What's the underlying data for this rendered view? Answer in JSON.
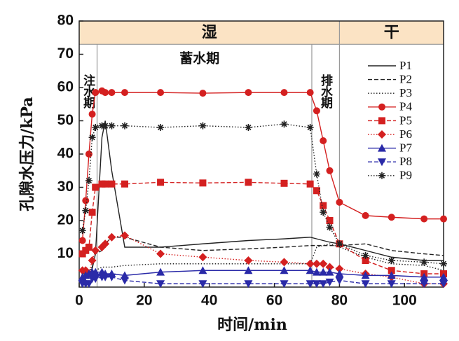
{
  "chart_data": {
    "type": "line",
    "x_label": "时间/min",
    "y_label": "孔隙水压力/kPa",
    "xlim": [
      0,
      112
    ],
    "ylim": [
      0,
      80
    ],
    "xticks": [
      0,
      20,
      40,
      60,
      80,
      100
    ],
    "yticks": [
      10,
      20,
      30,
      40,
      50,
      60,
      70,
      80
    ],
    "band_bottom": 73,
    "band_labels": [
      "湿",
      "干"
    ],
    "phase_lines": [
      5.5,
      71.5,
      80
    ],
    "phase_labels": [
      {
        "text": "注水期",
        "x": 2.5,
        "y": 64,
        "vertical": true
      },
      {
        "text": "蓄水期",
        "x": 37,
        "y": 68.5,
        "vertical": false
      },
      {
        "text": "排水期",
        "x": 75.5,
        "y": 64,
        "vertical": true
      }
    ],
    "legend": "upper right",
    "x": [
      1,
      2,
      3,
      4,
      5,
      7,
      8,
      10,
      14,
      25,
      38,
      52,
      63,
      71,
      73,
      75,
      77,
      80,
      88,
      96,
      106,
      112
    ],
    "series": [
      {
        "name": "P1",
        "color": "#222222",
        "dash": "solid",
        "marker": "none",
        "values": [
          4,
          4,
          5,
          5.5,
          10,
          45,
          50,
          35,
          12,
          12,
          13,
          14,
          14.5,
          15,
          14.5,
          14,
          13.5,
          13,
          11,
          9,
          8,
          8
        ]
      },
      {
        "name": "P2",
        "color": "#222222",
        "dash": "dashed",
        "marker": "none",
        "values": [
          3,
          4,
          5,
          6,
          10,
          11,
          13,
          15,
          15,
          12,
          11,
          11.5,
          12,
          12.5,
          12.5,
          12.5,
          12.5,
          12.5,
          13,
          11,
          10,
          9.5
        ]
      },
      {
        "name": "P3",
        "color": "#222222",
        "dash": "dotted",
        "marker": "none",
        "values": [
          2,
          2.5,
          3,
          3.5,
          5,
          6,
          6,
          6,
          6.5,
          7,
          7,
          7,
          7,
          7,
          12,
          12.5,
          13,
          12,
          9,
          7,
          6.5,
          5
        ]
      },
      {
        "name": "P4",
        "color": "#d42020",
        "dash": "solid",
        "marker": "circle",
        "values": [
          14,
          26,
          40,
          52,
          58.5,
          59,
          58.5,
          58.5,
          58.5,
          58.5,
          58.3,
          58.5,
          58.5,
          58.5,
          53,
          44,
          35,
          25.5,
          21.5,
          21,
          20.5,
          20.5
        ]
      },
      {
        "name": "P5",
        "color": "#d42020",
        "dash": "dashed",
        "marker": "square",
        "values": [
          10,
          11,
          12,
          22.5,
          30,
          31,
          31,
          31,
          31,
          31.5,
          31.3,
          31.5,
          31.2,
          31,
          29,
          24.5,
          20,
          13,
          8,
          5,
          4,
          4
        ]
      },
      {
        "name": "P6",
        "color": "#d42020",
        "dash": "dotted",
        "marker": "diamond",
        "values": [
          5,
          5,
          4,
          8,
          11,
          12,
          13,
          15,
          15.5,
          10,
          9,
          8,
          7.5,
          7,
          7,
          7,
          6,
          5.5,
          4,
          3,
          1,
          1
        ]
      },
      {
        "name": "P7",
        "color": "#2a2aa8",
        "dash": "solid",
        "marker": "triangle",
        "values": [
          3,
          3.5,
          4,
          4.5,
          4.5,
          4.5,
          4,
          4,
          3.5,
          4.5,
          5,
          5,
          5,
          5,
          4.5,
          4.5,
          4.5,
          4,
          3.5,
          3.5,
          3,
          3
        ]
      },
      {
        "name": "P8",
        "color": "#2a2aa8",
        "dash": "dashed",
        "marker": "triangle-down",
        "values": [
          1,
          1,
          1,
          2.5,
          2.5,
          3,
          3,
          3,
          2,
          1,
          1,
          1,
          1,
          1,
          1,
          1,
          1.5,
          2,
          1,
          1,
          1,
          1
        ]
      },
      {
        "name": "P9",
        "color": "#222222",
        "dash": "dotted",
        "marker": "asterisk",
        "values": [
          17,
          23,
          32,
          45,
          48,
          48.5,
          48.5,
          48.5,
          48.5,
          48,
          48.5,
          48,
          49,
          48,
          34,
          22.5,
          18,
          13,
          9.5,
          8,
          7.5,
          7
        ]
      }
    ]
  }
}
